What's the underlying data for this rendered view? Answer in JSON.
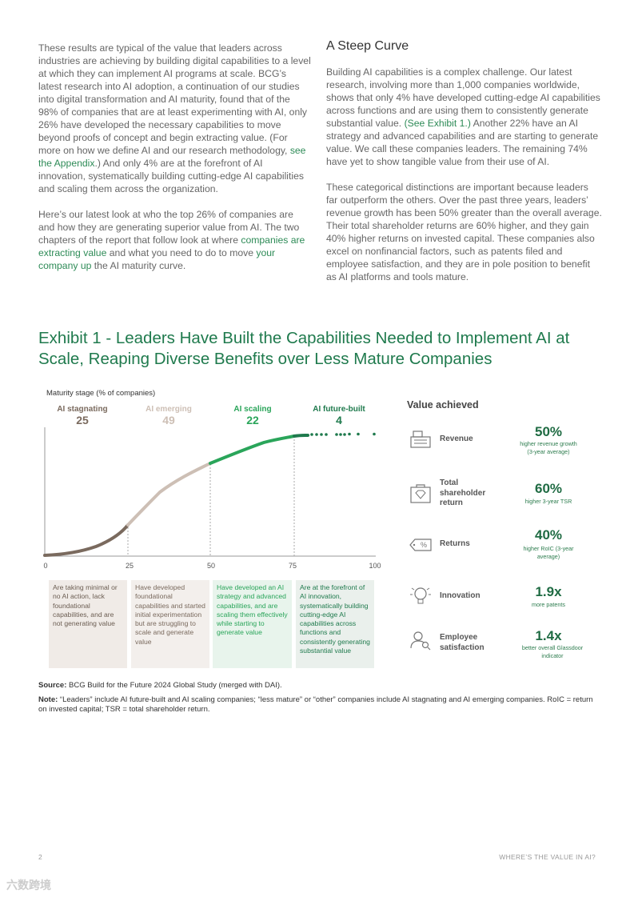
{
  "left_column": {
    "p1_a": "These results are typical of the value that leaders across industries are achieving by building digital capabilities to a level at which they can implement AI programs at scale. BCG’s latest research into AI adoption, a continuation of our studies into digital transformation and AI maturity, found that of the 98% of companies that are at least experimenting with AI, only 26% have developed the necessary capabilities to move beyond proofs of concept and begin extracting value. (For more on how we define AI and our research methodology, ",
    "p1_link": "see the Appendix",
    "p1_b": ".) And only 4% are at the forefront of AI innovation, systematically building cutting-edge AI capabilities and scaling them across the organization.",
    "p2_a": "Here’s our latest look at who the top 26% of companies are and how they are generating superior value from AI. The two chapters of the report that follow look at where ",
    "p2_link1": "companies are extracting value",
    "p2_b": " and what you need to do to move ",
    "p2_link2": "your company up",
    "p2_c": " the AI maturity curve."
  },
  "right_column": {
    "title": "A Steep Curve",
    "p1_a": "Building AI capabilities is a complex challenge. Our latest research, involving more than 1,000 companies worldwide, shows that only 4% have developed cutting-edge AI capabilities across functions and are using them to consistently generate substantial value. ",
    "p1_link": "(See Exhibit 1.)",
    "p1_b": " Another 22% have an AI strategy and advanced capabilities and are starting to generate value. We call these companies leaders. The remaining 74% have yet to show tangible value from their use of AI.",
    "p2": "These categorical distinctions are important because leaders far outperform the others. Over the past three years, leaders’ revenue growth has been 50% greater than the overall average. Their total shareholder returns are 60% higher, and they gain 40% higher returns on invested capital. These companies also excel on nonfinancial factors, such as patents filed and employee satisfaction, and they are in pole position to benefit as AI platforms and tools mature."
  },
  "exhibit": {
    "title": "Exhibit 1 - Leaders Have Built the Capabilities Needed to Implement AI at Scale, Reaping Diverse Benefits over Less Mature Companies"
  },
  "chart_data": {
    "type": "line",
    "title": "Maturity stage (% of companies)",
    "xlim": [
      0,
      100
    ],
    "x_ticks": [
      "0",
      "25",
      "50",
      "75",
      "100"
    ],
    "colors": {
      "stagnating": "#7a6a5e",
      "emerging": "#cdbfb5",
      "scaling": "#2aa55a",
      "future_built": "#1f7a4d"
    },
    "stages": [
      {
        "name": "AI stagnating",
        "value": "25",
        "range": [
          0,
          25
        ],
        "color": "#7a6a5e",
        "description": "Are taking minimal or no AI action, lack foundational capabilities, and are not generating value"
      },
      {
        "name": "AI emerging",
        "value": "49",
        "range": [
          25,
          50
        ],
        "color": "#cdbfb5",
        "description": "Have developed foundational capabilities and started initial experimentation but are struggling to scale and generate value"
      },
      {
        "name": "AI scaling",
        "value": "22",
        "range": [
          50,
          76
        ],
        "color": "#2aa55a",
        "description": "Have developed an AI strategy and advanced capabilities, and are scaling them effectively while starting to generate value"
      },
      {
        "name": "AI future-built",
        "value": "4",
        "range": [
          76,
          100
        ],
        "color": "#1f7a4d",
        "description": "Are at the forefront of AI innovation, systematically building cutting-edge AI capabilities across functions and consistently generating substantial value"
      }
    ]
  },
  "value_achieved": {
    "title": "Value achieved",
    "metrics": [
      {
        "label": "Revenue",
        "value": "50%",
        "desc": "higher revenue growth (3-year average)",
        "icon": "cash-register-icon"
      },
      {
        "label": "Total shareholder return",
        "value": "60%",
        "desc": "higher 3-year TSR",
        "icon": "diamond-bag-icon"
      },
      {
        "label": "Returns",
        "value": "40%",
        "desc": "higher RoIC (3-year average)",
        "icon": "percent-tag-icon"
      },
      {
        "label": "Innovation",
        "value": "1.9x",
        "desc": "more patents",
        "icon": "lightbulb-icon"
      },
      {
        "label": "Employee satisfaction",
        "value": "1.4x",
        "desc": "better overall Glassdoor indicator",
        "icon": "person-search-icon"
      }
    ]
  },
  "source": {
    "label": "Source:",
    "text": " BCG Build for the Future 2024 Global Study (merged with DAI)."
  },
  "note": {
    "label": "Note:",
    "text": " “Leaders” include AI future-built and AI scaling companies; “less mature” or “other” companies include AI stagnating and AI emerging companies. RoIC = return on invested capital; TSR = total shareholder return."
  },
  "footer": {
    "page_number": "2",
    "title": "WHERE’S THE VALUE IN AI?"
  },
  "watermark": "六数跨境"
}
